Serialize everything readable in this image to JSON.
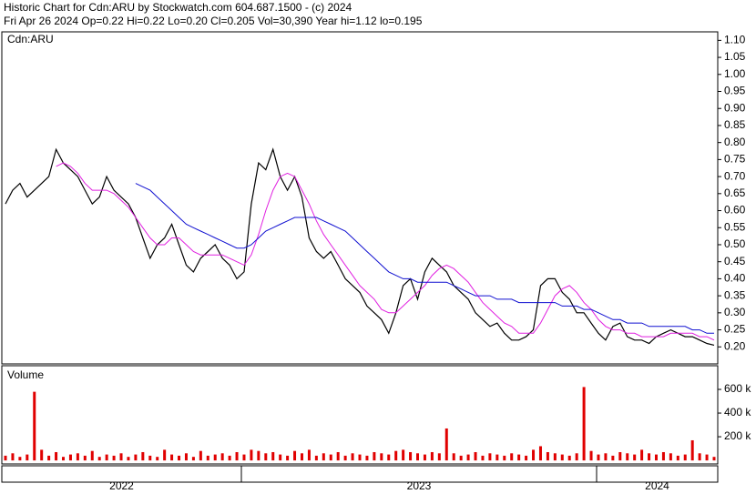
{
  "chart_data": [
    {
      "type": "line",
      "title": "Historic Chart for Cdn:ARU by Stockwatch.com 604.687.1500 - (c) 2024",
      "subtitle": "Fri Apr 26 2024  Op=0.22  Hi=0.22  Lo=0.20  Cl=0.205  Vol=30,390  Year hi=1.12  lo=0.195",
      "panel_label": "Cdn:ARU",
      "year_labels": [
        "2022",
        "2023",
        "2024"
      ],
      "ylim": [
        0.15,
        1.125
      ],
      "yticks": [
        {
          "value": 0.2,
          "label": "0.20"
        },
        {
          "value": 0.25,
          "label": "0.25"
        },
        {
          "value": 0.3,
          "label": "0.30"
        },
        {
          "value": 0.35,
          "label": "0.35"
        },
        {
          "value": 0.4,
          "label": "0.40"
        },
        {
          "value": 0.45,
          "label": "0.45"
        },
        {
          "value": 0.5,
          "label": "0.50"
        },
        {
          "value": 0.55,
          "label": "0.55"
        },
        {
          "value": 0.6,
          "label": "0.60"
        },
        {
          "value": 0.65,
          "label": "0.65"
        },
        {
          "value": 0.7,
          "label": "0.70"
        },
        {
          "value": 0.75,
          "label": "0.75"
        },
        {
          "value": 0.8,
          "label": "0.80"
        },
        {
          "value": 0.85,
          "label": "0.85"
        },
        {
          "value": 0.9,
          "label": "0.90"
        },
        {
          "value": 0.95,
          "label": "0.95"
        },
        {
          "value": 1.0,
          "label": "1.00"
        },
        {
          "value": 1.05,
          "label": "1.05"
        },
        {
          "value": 1.1,
          "label": "1.10"
        }
      ],
      "series": [
        {
          "color": "#000000",
          "values": [
            0.62,
            0.66,
            0.68,
            0.64,
            0.66,
            0.68,
            0.7,
            0.78,
            0.74,
            0.72,
            0.7,
            0.66,
            0.62,
            0.64,
            0.7,
            0.66,
            0.64,
            0.62,
            0.58,
            0.52,
            0.46,
            0.5,
            0.52,
            0.56,
            0.5,
            0.44,
            0.42,
            0.46,
            0.48,
            0.5,
            0.46,
            0.44,
            0.4,
            0.42,
            0.62,
            0.74,
            0.72,
            0.78,
            0.7,
            0.66,
            0.7,
            0.64,
            0.52,
            0.48,
            0.46,
            0.48,
            0.44,
            0.4,
            0.38,
            0.36,
            0.32,
            0.3,
            0.28,
            0.24,
            0.3,
            0.38,
            0.4,
            0.34,
            0.42,
            0.46,
            0.44,
            0.42,
            0.38,
            0.36,
            0.34,
            0.3,
            0.28,
            0.26,
            0.27,
            0.24,
            0.22,
            0.22,
            0.23,
            0.25,
            0.38,
            0.4,
            0.4,
            0.36,
            0.34,
            0.3,
            0.3,
            0.27,
            0.24,
            0.22,
            0.26,
            0.27,
            0.23,
            0.22,
            0.22,
            0.21,
            0.23,
            0.24,
            0.25,
            0.24,
            0.23,
            0.23,
            0.22,
            0.21,
            0.205
          ]
        },
        {
          "color": "#e020e0",
          "values": [
            null,
            null,
            null,
            null,
            null,
            null,
            null,
            0.73,
            0.74,
            0.73,
            0.71,
            0.68,
            0.66,
            0.66,
            0.66,
            0.65,
            0.63,
            0.61,
            0.58,
            0.55,
            0.52,
            0.5,
            0.5,
            0.52,
            0.52,
            0.5,
            0.48,
            0.47,
            0.47,
            0.47,
            0.47,
            0.46,
            0.45,
            0.44,
            0.47,
            0.53,
            0.6,
            0.66,
            0.7,
            0.71,
            0.7,
            0.66,
            0.62,
            0.57,
            0.53,
            0.5,
            0.47,
            0.44,
            0.41,
            0.38,
            0.36,
            0.34,
            0.31,
            0.3,
            0.3,
            0.32,
            0.34,
            0.36,
            0.38,
            0.41,
            0.43,
            0.44,
            0.43,
            0.41,
            0.39,
            0.36,
            0.33,
            0.31,
            0.29,
            0.27,
            0.26,
            0.24,
            0.24,
            0.24,
            0.27,
            0.31,
            0.35,
            0.37,
            0.38,
            0.36,
            0.33,
            0.31,
            0.28,
            0.26,
            0.25,
            0.25,
            0.24,
            0.24,
            0.23,
            0.23,
            0.23,
            0.23,
            0.24,
            0.24,
            0.24,
            0.24,
            0.23,
            0.23,
            0.22
          ]
        },
        {
          "color": "#1010d0",
          "values": [
            null,
            null,
            null,
            null,
            null,
            null,
            null,
            null,
            null,
            null,
            null,
            null,
            null,
            null,
            null,
            null,
            null,
            null,
            0.68,
            0.67,
            0.66,
            0.64,
            0.62,
            0.6,
            0.58,
            0.56,
            0.55,
            0.54,
            0.53,
            0.52,
            0.51,
            0.5,
            0.49,
            0.49,
            0.5,
            0.52,
            0.54,
            0.55,
            0.56,
            0.57,
            0.58,
            0.58,
            0.58,
            0.58,
            0.57,
            0.56,
            0.55,
            0.54,
            0.52,
            0.5,
            0.48,
            0.46,
            0.44,
            0.42,
            0.41,
            0.4,
            0.4,
            0.39,
            0.39,
            0.39,
            0.39,
            0.39,
            0.38,
            0.37,
            0.36,
            0.35,
            0.35,
            0.35,
            0.34,
            0.34,
            0.34,
            0.33,
            0.33,
            0.33,
            0.33,
            0.33,
            0.33,
            0.32,
            0.32,
            0.32,
            0.31,
            0.31,
            0.3,
            0.29,
            0.28,
            0.28,
            0.27,
            0.27,
            0.27,
            0.26,
            0.26,
            0.26,
            0.26,
            0.26,
            0.26,
            0.25,
            0.25,
            0.24,
            0.24
          ]
        }
      ]
    },
    {
      "type": "bar",
      "panel_label": "Volume",
      "color": "#e00000",
      "ylim": [
        -30000,
        800000
      ],
      "yticks": [
        {
          "value": 200000,
          "label": "200 k"
        },
        {
          "value": 400000,
          "label": "400 k"
        },
        {
          "value": 600000,
          "label": "600 k"
        }
      ],
      "values": [
        40000,
        60000,
        30000,
        50000,
        580000,
        90000,
        40000,
        70000,
        30000,
        50000,
        60000,
        40000,
        80000,
        30000,
        50000,
        40000,
        60000,
        30000,
        50000,
        70000,
        40000,
        30000,
        90000,
        50000,
        40000,
        60000,
        30000,
        80000,
        40000,
        50000,
        60000,
        40000,
        70000,
        50000,
        90000,
        80000,
        60000,
        70000,
        50000,
        40000,
        80000,
        60000,
        90000,
        40000,
        60000,
        50000,
        70000,
        40000,
        60000,
        50000,
        40000,
        70000,
        60000,
        50000,
        80000,
        90000,
        70000,
        60000,
        50000,
        70000,
        60000,
        270000,
        60000,
        40000,
        50000,
        70000,
        40000,
        60000,
        50000,
        40000,
        60000,
        50000,
        40000,
        90000,
        120000,
        70000,
        60000,
        50000,
        40000,
        60000,
        620000,
        80000,
        50000,
        60000,
        40000,
        70000,
        60000,
        50000,
        90000,
        60000,
        50000,
        70000,
        60000,
        40000,
        50000,
        170000,
        60000,
        50000,
        30000
      ]
    }
  ]
}
